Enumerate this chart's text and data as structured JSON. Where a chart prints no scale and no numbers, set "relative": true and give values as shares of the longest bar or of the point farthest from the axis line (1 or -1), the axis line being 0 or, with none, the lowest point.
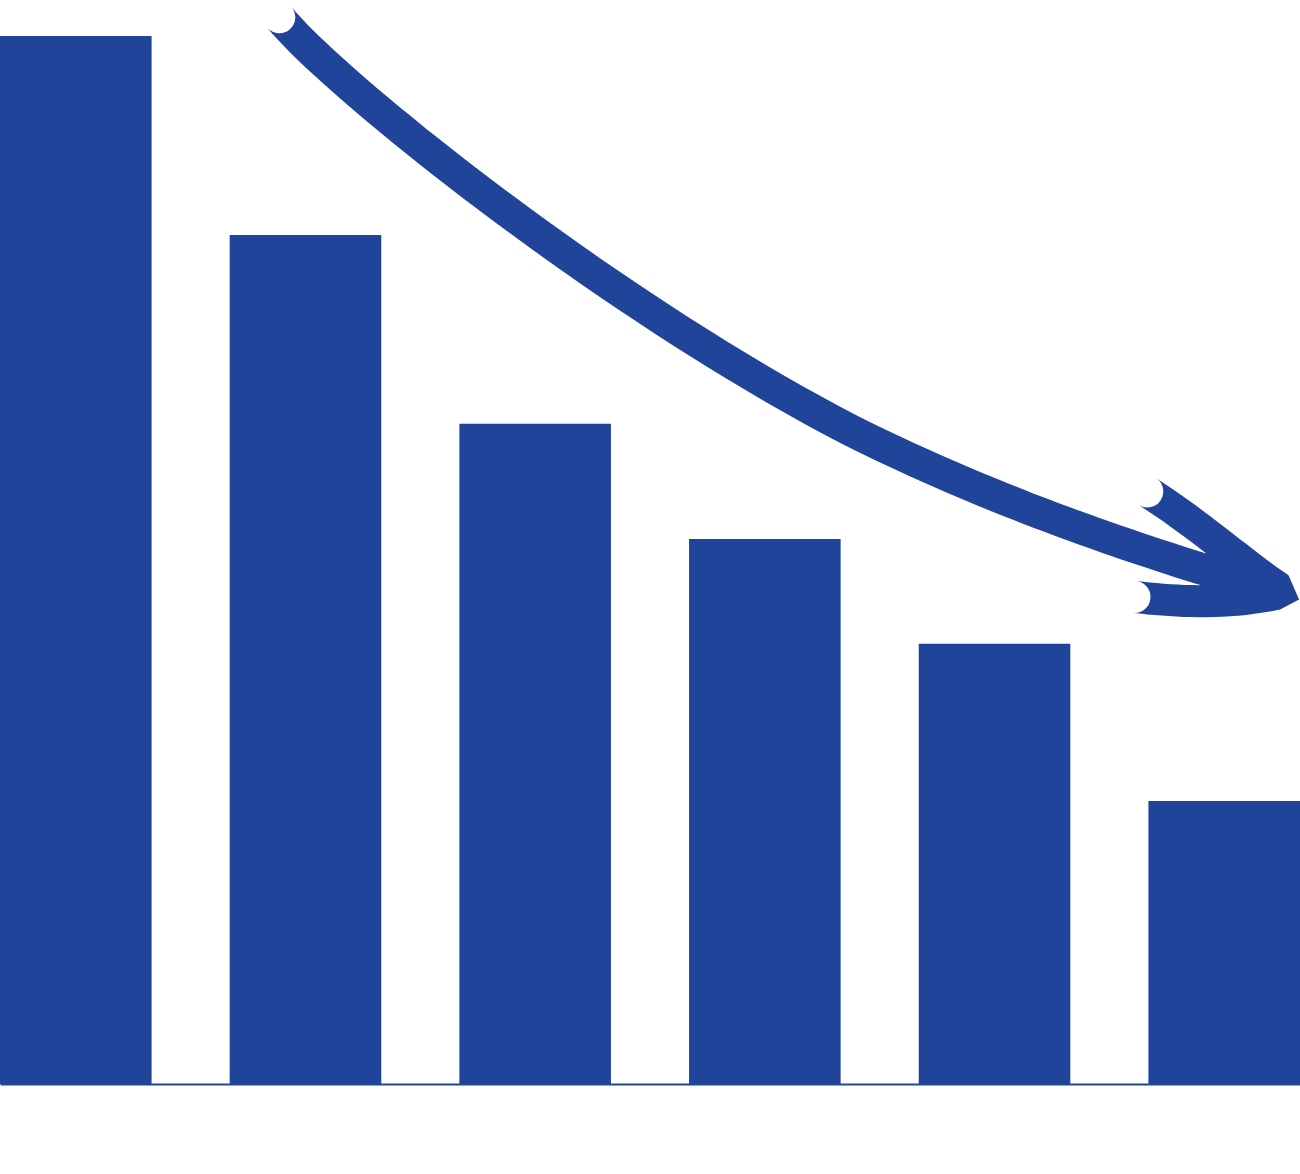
{
  "chart_data": {
    "type": "bar",
    "relative": true,
    "categories": [
      null,
      null,
      null,
      null,
      null,
      null
    ],
    "values": [
      1,
      0.81,
      0.63,
      0.52,
      0.42,
      0.27
    ],
    "color": "#20449a"
  }
}
